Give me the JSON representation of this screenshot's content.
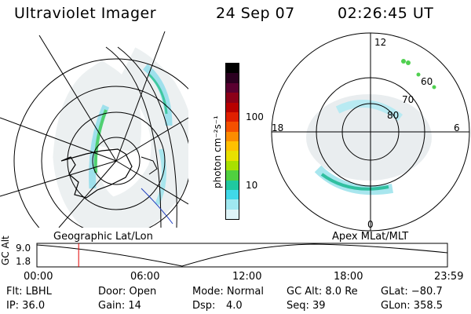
{
  "header": {
    "instrument": "Ultraviolet Imager",
    "date": "24 Sep 07",
    "time": "02:26:45 UT"
  },
  "colorbar": {
    "unit_label": "photon cm⁻²s⁻¹",
    "ticks": [
      "100",
      "10"
    ],
    "colors": [
      "#000000",
      "#2b0020",
      "#5a0030",
      "#8c0018",
      "#b80000",
      "#e02000",
      "#f45000",
      "#fb8c00",
      "#ffc000",
      "#e8e000",
      "#a8e000",
      "#50d040",
      "#20c8a0",
      "#40d8e8",
      "#a0e8f0",
      "#dff4f8"
    ]
  },
  "left_map": {
    "caption": "Geographic Lat/Lon"
  },
  "right_map": {
    "caption": "Apex MLat/MLT",
    "mlt_labels": {
      "top": "12",
      "left": "18",
      "right": "6",
      "bottom": "0"
    },
    "lat_labels": [
      "60",
      "70",
      "80"
    ]
  },
  "timeline": {
    "axis_title": "GC Alt",
    "y_ticks": [
      "9.0",
      "1.8"
    ],
    "x_ticks": [
      "00:00",
      "06:00",
      "12:00",
      "18:00",
      "23:59"
    ],
    "current_time_fraction": 0.1017
  },
  "info": {
    "flt": "Flt: LBHL",
    "ip": "IP: 36.0",
    "door": "Door: Open",
    "gain": "Gain: 14",
    "mode": "Mode: Normal",
    "dsp_label": "Dsp:",
    "dsp_value": "4.0",
    "gc_alt": "GC Alt: 8.0 Re",
    "seq": "Seq: 39",
    "glat": "GLat: −80.7",
    "glon": "GLon: 358.5"
  }
}
